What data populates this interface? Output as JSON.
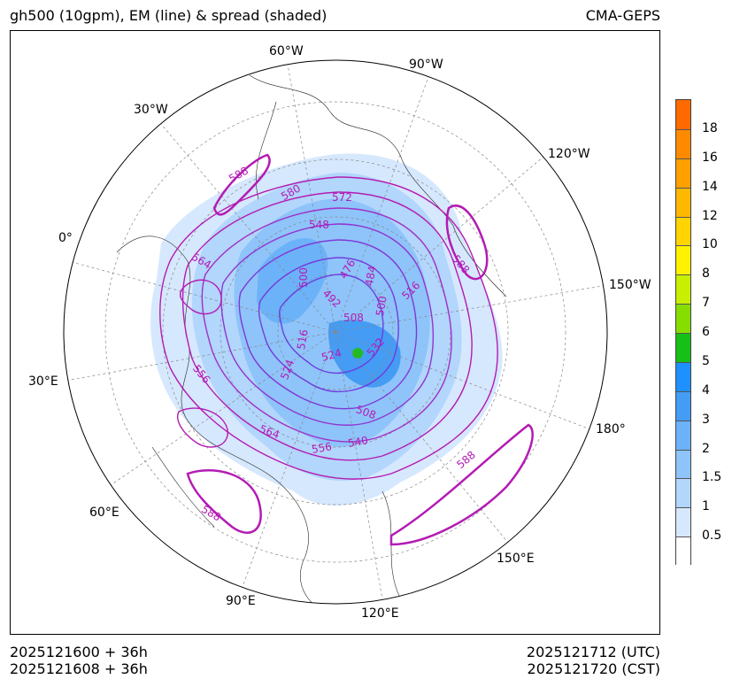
{
  "header": {
    "title": "gh500 (10gpm), EM (line) & spread (shaded)",
    "model": "CMA-GEPS"
  },
  "footer": {
    "init_utc": "2025121600 + 36h",
    "init_cst": "2025121608 + 36h",
    "valid_utc": "2025121712 (UTC)",
    "valid_cst": "2025121720 (CST)"
  },
  "map": {
    "longitude_labels": [
      "60°W",
      "90°W",
      "30°W",
      "120°W",
      "0°",
      "150°W",
      "30°E",
      "180°",
      "60°E",
      "150°E",
      "90°E",
      "120°E"
    ],
    "contour_labels": [
      "588",
      "580",
      "572",
      "548",
      "564",
      "500",
      "476",
      "484",
      "516",
      "492",
      "508",
      "500",
      "588",
      "556",
      "516",
      "524",
      "524",
      "532",
      "508",
      "564",
      "556",
      "540",
      "588",
      "588"
    ],
    "colors": {
      "contour": "#b41bb4",
      "contour_core": "#7a3cdc",
      "spread_max_marker": "#22bb22"
    }
  },
  "colorbar": {
    "labels": [
      "18",
      "16",
      "14",
      "12",
      "10",
      "8",
      "7",
      "6",
      "5",
      "4",
      "3",
      "2",
      "1.5",
      "1",
      "0.5"
    ],
    "colors": [
      "#ff6a00",
      "#ff8a00",
      "#ffa000",
      "#ffb800",
      "#ffd400",
      "#fff200",
      "#c8ee00",
      "#86de00",
      "#16c016",
      "#1e90ff",
      "#449cf4",
      "#6cb2f8",
      "#8ec4fa",
      "#b2d6fc",
      "#d6e8fe",
      "#ffffff"
    ]
  }
}
